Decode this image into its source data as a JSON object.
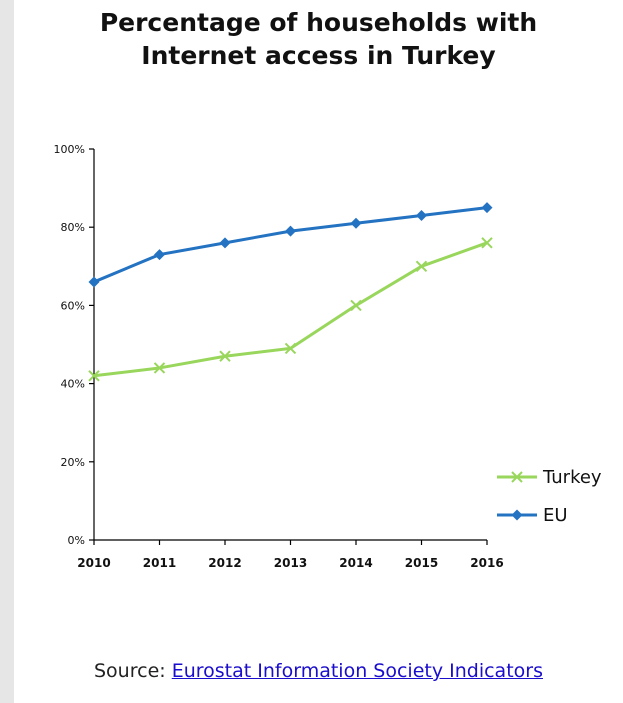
{
  "title": {
    "line1": "Percentage of households with",
    "line2": "Internet access in Turkey"
  },
  "source": {
    "label": "Source:",
    "link_text": "Eurostat Information Society Indicators"
  },
  "colors": {
    "turkey": "#99d65c",
    "eu": "#2473c2",
    "axis": "#000000"
  },
  "chart_data": {
    "type": "line",
    "title": "Percentage of households with Internet access in Turkey",
    "x": [
      "2010",
      "2011",
      "2012",
      "2013",
      "2014",
      "2015",
      "2016"
    ],
    "ylim": [
      0,
      100
    ],
    "y_ticks": [
      "0%",
      "20%",
      "40%",
      "60%",
      "80%",
      "100%"
    ],
    "grid": false,
    "legend": "right",
    "series": [
      {
        "name": "Turkey",
        "marker": "x",
        "values": [
          42,
          44,
          47,
          49,
          60,
          70,
          76
        ]
      },
      {
        "name": "EU",
        "marker": "diamond",
        "values": [
          66,
          73,
          76,
          79,
          81,
          83,
          85
        ]
      }
    ]
  }
}
